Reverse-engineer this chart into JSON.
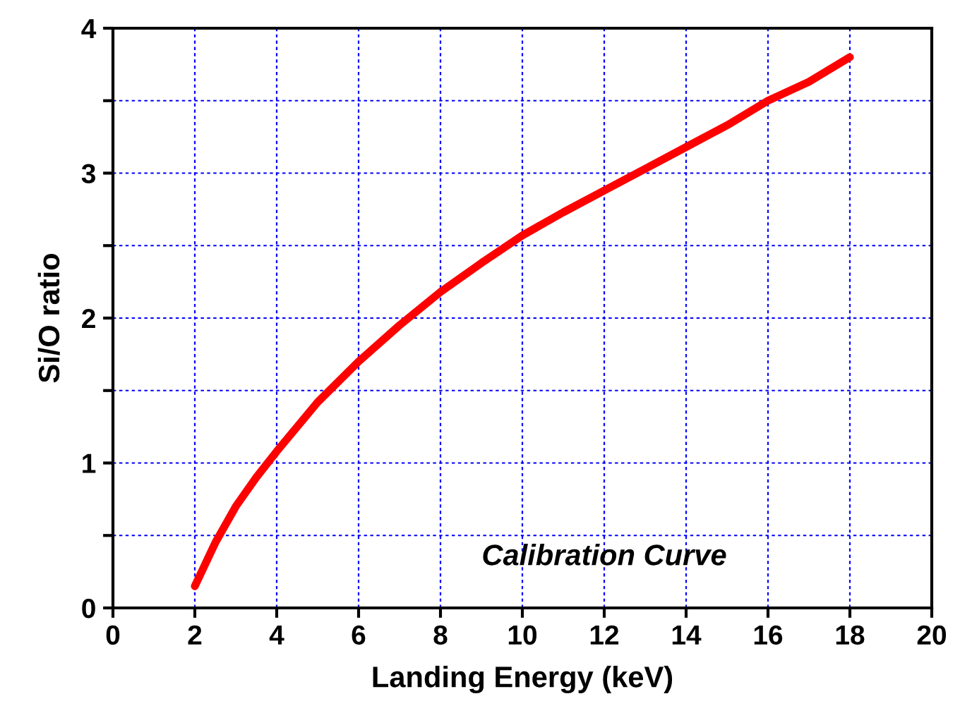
{
  "chart_data": {
    "type": "line",
    "xlabel": "Landing Energy (keV)",
    "ylabel": "Si/O ratio",
    "x": [
      2,
      2.5,
      3,
      3.5,
      4,
      5,
      6,
      7,
      8,
      9,
      10,
      11,
      12,
      13,
      14,
      15,
      16,
      17,
      18
    ],
    "series": [
      {
        "color": "#ff0000",
        "values": [
          0.15,
          0.45,
          0.7,
          0.9,
          1.08,
          1.42,
          1.7,
          1.95,
          2.18,
          2.38,
          2.57,
          2.73,
          2.88,
          3.03,
          3.18,
          3.33,
          3.5,
          3.63,
          3.8
        ]
      }
    ],
    "xlim": [
      0,
      20
    ],
    "ylim": [
      0,
      4
    ],
    "xticks": [
      0,
      2,
      4,
      6,
      8,
      10,
      12,
      14,
      16,
      18,
      20
    ],
    "yticks": [
      0,
      {
        "value": 0.5,
        "label": null
      },
      1,
      {
        "value": 1.5,
        "label": null
      },
      2,
      {
        "value": 2.5,
        "label": null
      },
      3,
      {
        "value": 3.5,
        "label": null
      },
      4
    ],
    "grid": true,
    "marker": "none",
    "line_style": "solid",
    "annotations": [
      "Calibration Curve"
    ]
  }
}
